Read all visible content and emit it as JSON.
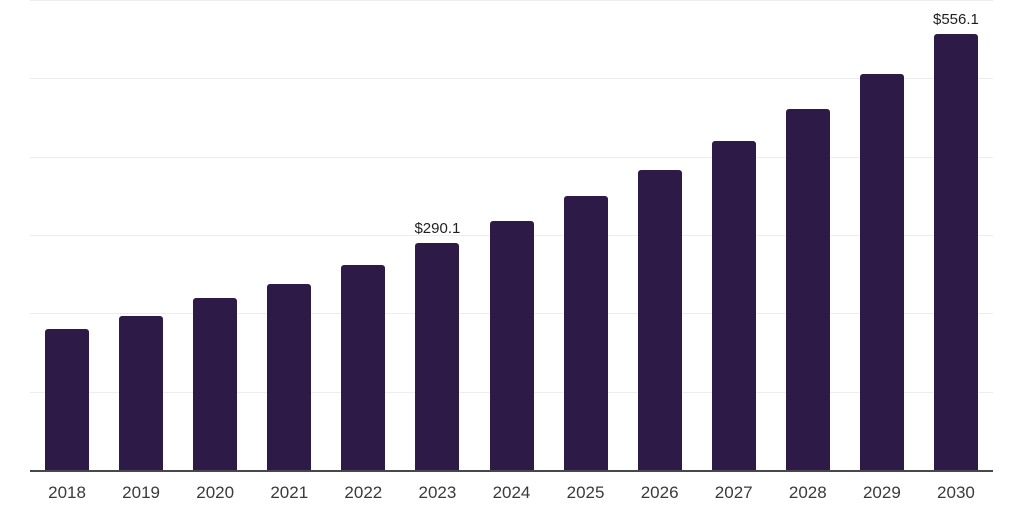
{
  "chart_data": {
    "type": "bar",
    "title": "",
    "xlabel": "",
    "ylabel": "",
    "categories": [
      "2018",
      "2019",
      "2020",
      "2021",
      "2022",
      "2023",
      "2024",
      "2025",
      "2026",
      "2027",
      "2028",
      "2029",
      "2030"
    ],
    "values": [
      180.3,
      196.0,
      220.2,
      238.0,
      261.4,
      290.1,
      318.5,
      349.2,
      383.2,
      420.1,
      460.8,
      505.6,
      556.1
    ],
    "value_labels": {
      "2023": "$290.1",
      "2030": "$556.1"
    },
    "ylim": [
      0,
      600
    ],
    "gridline_step": 100,
    "grid": true,
    "legend": false,
    "colors": {
      "bar": "#2e1a47",
      "axis": "#47474f",
      "gridline": "#ededed",
      "tick_label": "#3a3a3a",
      "value_label": "#1f1f1f",
      "background": "#ffffff"
    }
  }
}
